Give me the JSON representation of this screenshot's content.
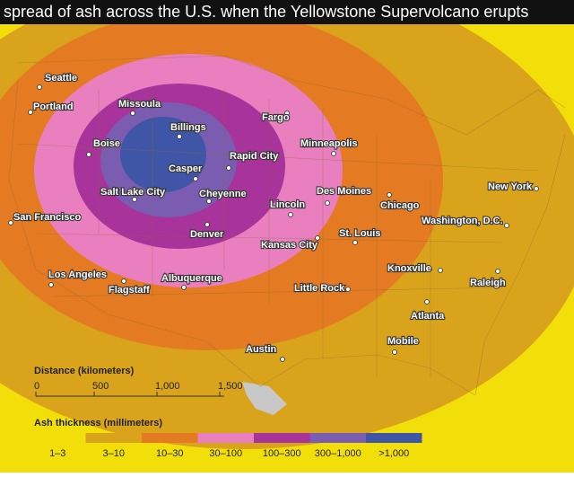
{
  "title": "spread of ash across the U.S. when the Yellowstone Supervolcano erupts",
  "cities": [
    "Seattle",
    "Portland",
    "Missoula",
    "Billings",
    "Boise",
    "Fargo",
    "Minneapolis",
    "Rapid City",
    "Casper",
    "Salt Lake City",
    "Cheyenne",
    "Lincoln",
    "Des Moines",
    "Chicago",
    "New York",
    "San Francisco",
    "Denver",
    "Washington, D.C.",
    "St. Louis",
    "Kansas City",
    "Knoxville",
    "Los Angeles",
    "Albuquerque",
    "Flagstaff",
    "Raleigh",
    "Little Rock",
    "Atlanta",
    "Mobile",
    "Austin"
  ],
  "distance_legend": {
    "title": "Distance (kilometers)",
    "ticks": [
      "0",
      "500",
      "1,000",
      "1,500"
    ]
  },
  "thickness_legend": {
    "title": "Ash thickness (millimeters)",
    "categories": [
      "1–3",
      "3–10",
      "10–30",
      "30–100",
      "100–300",
      "300–1,000",
      ">1,000"
    ],
    "colors": [
      "#f2df0a",
      "#d9a41c",
      "#e47a22",
      "#ea7fc0",
      "#a8339a",
      "#7a5cb0",
      "#3f55a6"
    ]
  }
}
